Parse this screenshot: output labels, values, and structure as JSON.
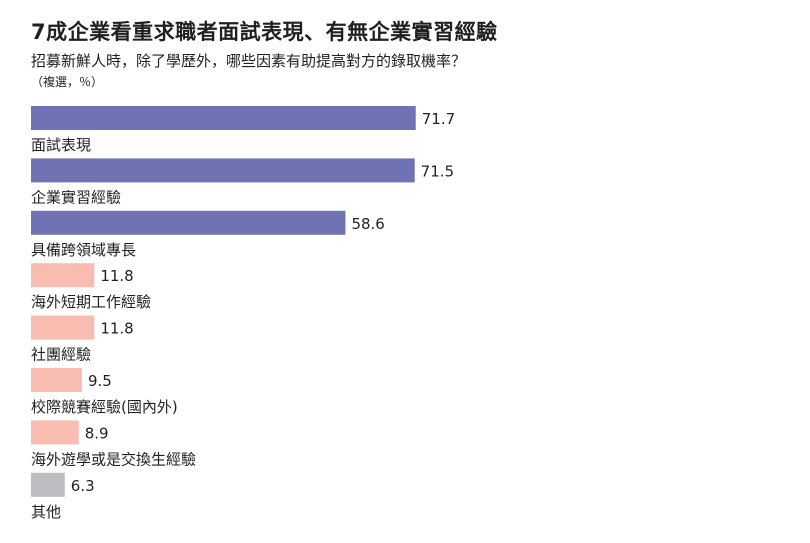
{
  "header": {
    "title": "7成企業看重求職者面試表現、有無企業實習經驗",
    "subtitle": "招募新鮮人時，除了學歷外，哪些因素有助提高對方的錄取機率？",
    "note": "（複選，％）"
  },
  "chart_data": {
    "type": "bar",
    "orientation": "horizontal",
    "categories": [
      "面試表現",
      "企業實習經驗",
      "具備跨領域專長",
      "海外短期工作經驗",
      "社團經驗",
      "校際競賽經驗(國內外)",
      "海外遊學或是交換生經驗",
      "其他"
    ],
    "values": [
      71.7,
      71.5,
      58.6,
      11.8,
      11.8,
      9.5,
      8.9,
      6.3
    ],
    "value_labels": [
      "71.7",
      "71.5",
      "58.6",
      "11.8",
      "11.8",
      "9.5",
      "8.9",
      "6.3"
    ],
    "bar_colors": [
      "#7073b3",
      "#7073b3",
      "#7073b3",
      "#f9bcb0",
      "#f9bcb0",
      "#f9bcb0",
      "#f9bcb0",
      "#bcbdc0"
    ],
    "xlim": [
      0,
      100
    ],
    "grid": false,
    "legend": "none"
  }
}
